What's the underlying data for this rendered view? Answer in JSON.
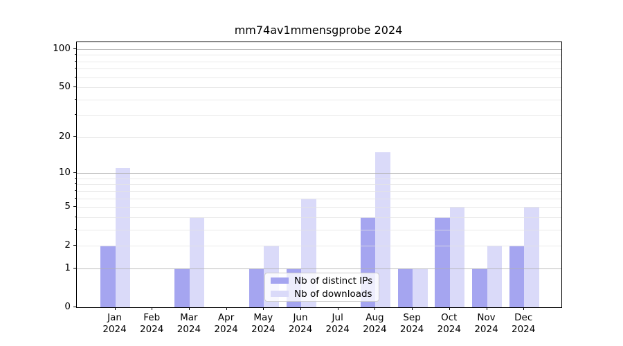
{
  "figure": {
    "title": "mm74av1mmensgprobe 2024",
    "colors": {
      "distinct_ips_bar": "#a5a5f0",
      "downloads_bar": "#dadaf9",
      "grid_major": "#b0b0b0",
      "grid_minor": "#e4e4e4",
      "axis": "#000000",
      "text": "#000000",
      "legend_bg": "rgba(255,255,255,0.8)",
      "legend_border": "#cccccc"
    },
    "legend": {
      "items": [
        {
          "label": "Nb of distinct IPs",
          "color": "#a5a5f0"
        },
        {
          "label": "Nb of downloads",
          "color": "#dadaf9"
        }
      ]
    }
  },
  "chart_data": {
    "type": "bar",
    "title": "mm74av1mmensgprobe 2024",
    "categories": [
      {
        "line1": "Jan",
        "line2": "2024"
      },
      {
        "line1": "Feb",
        "line2": "2024"
      },
      {
        "line1": "Mar",
        "line2": "2024"
      },
      {
        "line1": "Apr",
        "line2": "2024"
      },
      {
        "line1": "May",
        "line2": "2024"
      },
      {
        "line1": "Jun",
        "line2": "2024"
      },
      {
        "line1": "Jul",
        "line2": "2024"
      },
      {
        "line1": "Aug",
        "line2": "2024"
      },
      {
        "line1": "Sep",
        "line2": "2024"
      },
      {
        "line1": "Oct",
        "line2": "2024"
      },
      {
        "line1": "Nov",
        "line2": "2024"
      },
      {
        "line1": "Dec",
        "line2": "2024"
      }
    ],
    "series": [
      {
        "name": "Nb of distinct IPs",
        "values": [
          2,
          0,
          1,
          0,
          1,
          1,
          0,
          4,
          1,
          4,
          1,
          2
        ]
      },
      {
        "name": "Nb of downloads",
        "values": [
          11,
          0,
          4,
          0,
          2,
          6,
          0,
          15,
          1,
          5,
          2,
          5
        ]
      }
    ],
    "xlabel": "",
    "ylabel": "",
    "y_scale": "log1p",
    "ylim": [
      0,
      113
    ],
    "y_ticks": [
      0,
      1,
      2,
      5,
      10,
      20,
      50,
      100
    ],
    "y_major_gridlines": [
      1,
      10,
      100
    ],
    "y_minor_gridlines": [
      2,
      3,
      4,
      5,
      6,
      7,
      8,
      9,
      20,
      30,
      40,
      50,
      60,
      70,
      80,
      90
    ],
    "grid": true,
    "legend_position": "lower center"
  }
}
